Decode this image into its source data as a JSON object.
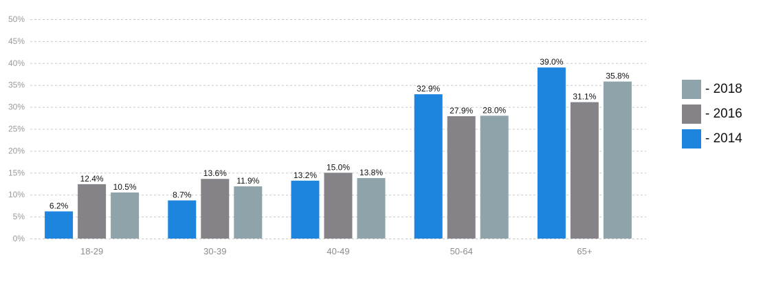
{
  "chart_data": {
    "type": "bar",
    "categories": [
      "18-29",
      "30-39",
      "40-49",
      "50-64",
      "65+"
    ],
    "series": [
      {
        "name": "- 2014",
        "color": "#1e85de",
        "values": [
          6.2,
          8.7,
          13.2,
          32.9,
          39.0
        ]
      },
      {
        "name": "- 2016",
        "color": "#858387",
        "values": [
          12.4,
          13.6,
          15.0,
          27.9,
          31.1
        ]
      },
      {
        "name": "- 2018",
        "color": "#8ea3aa",
        "values": [
          10.5,
          11.9,
          13.8,
          28.0,
          35.8
        ]
      }
    ],
    "data_labels": [
      [
        "6.2%",
        "8.7%",
        "13.2%",
        "32.9%",
        "39.0%"
      ],
      [
        "12.4%",
        "13.6%",
        "15.0%",
        "27.9%",
        "31.1%"
      ],
      [
        "10.5%",
        "11.9%",
        "13.8%",
        "28.0%",
        "35.8%"
      ]
    ],
    "yticks": [
      0,
      5,
      10,
      15,
      20,
      25,
      30,
      35,
      40,
      45,
      50
    ],
    "ytick_labels": [
      "0%",
      "5%",
      "10%",
      "15%",
      "20%",
      "25%",
      "30%",
      "35%",
      "40%",
      "45%",
      "50%"
    ],
    "ylim": [
      0,
      50
    ],
    "grid": true,
    "legend_position": "right",
    "legend_order": [
      "- 2018",
      "- 2016",
      "- 2014"
    ]
  }
}
